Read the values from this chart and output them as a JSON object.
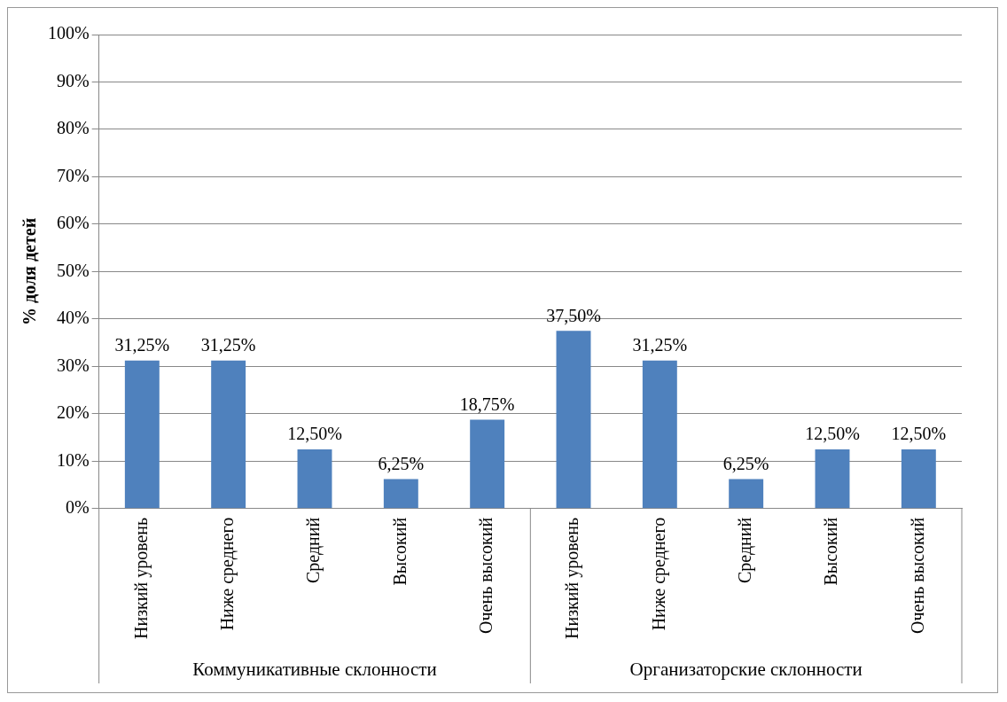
{
  "chart_data": {
    "type": "bar",
    "ylabel": "% доля детей",
    "categories": [
      "Низкий уровень",
      "Ниже среднего",
      "Средний",
      "Высокий",
      "Очень высокий",
      "Низкий уровень",
      "Ниже среднего",
      "Средний",
      "Высокий",
      "Очень высокий"
    ],
    "values": [
      31.25,
      31.25,
      12.5,
      6.25,
      18.75,
      37.5,
      31.25,
      6.25,
      12.5,
      12.5
    ],
    "value_labels": [
      "31,25%",
      "31,25%",
      "12,50%",
      "6,25%",
      "18,75%",
      "37,50%",
      "31,25%",
      "6,25%",
      "12,50%",
      "12,50%"
    ],
    "color": "#4f81bd",
    "ylim": [
      0,
      100
    ],
    "yticks": [
      {
        "value": 0,
        "label": "0%"
      },
      {
        "value": 10,
        "label": "10%"
      },
      {
        "value": 20,
        "label": "20%"
      },
      {
        "value": 30,
        "label": "30%"
      },
      {
        "value": 40,
        "label": "40%"
      },
      {
        "value": 50,
        "label": "50%"
      },
      {
        "value": 60,
        "label": "60%"
      },
      {
        "value": 70,
        "label": "70%"
      },
      {
        "value": 80,
        "label": "80%"
      },
      {
        "value": 90,
        "label": "90%"
      },
      {
        "value": 100,
        "label": "100%"
      }
    ],
    "grid": "y",
    "legend": false,
    "annotations": [
      "Коммуникативные склонности",
      "Организаторские склонности"
    ]
  }
}
